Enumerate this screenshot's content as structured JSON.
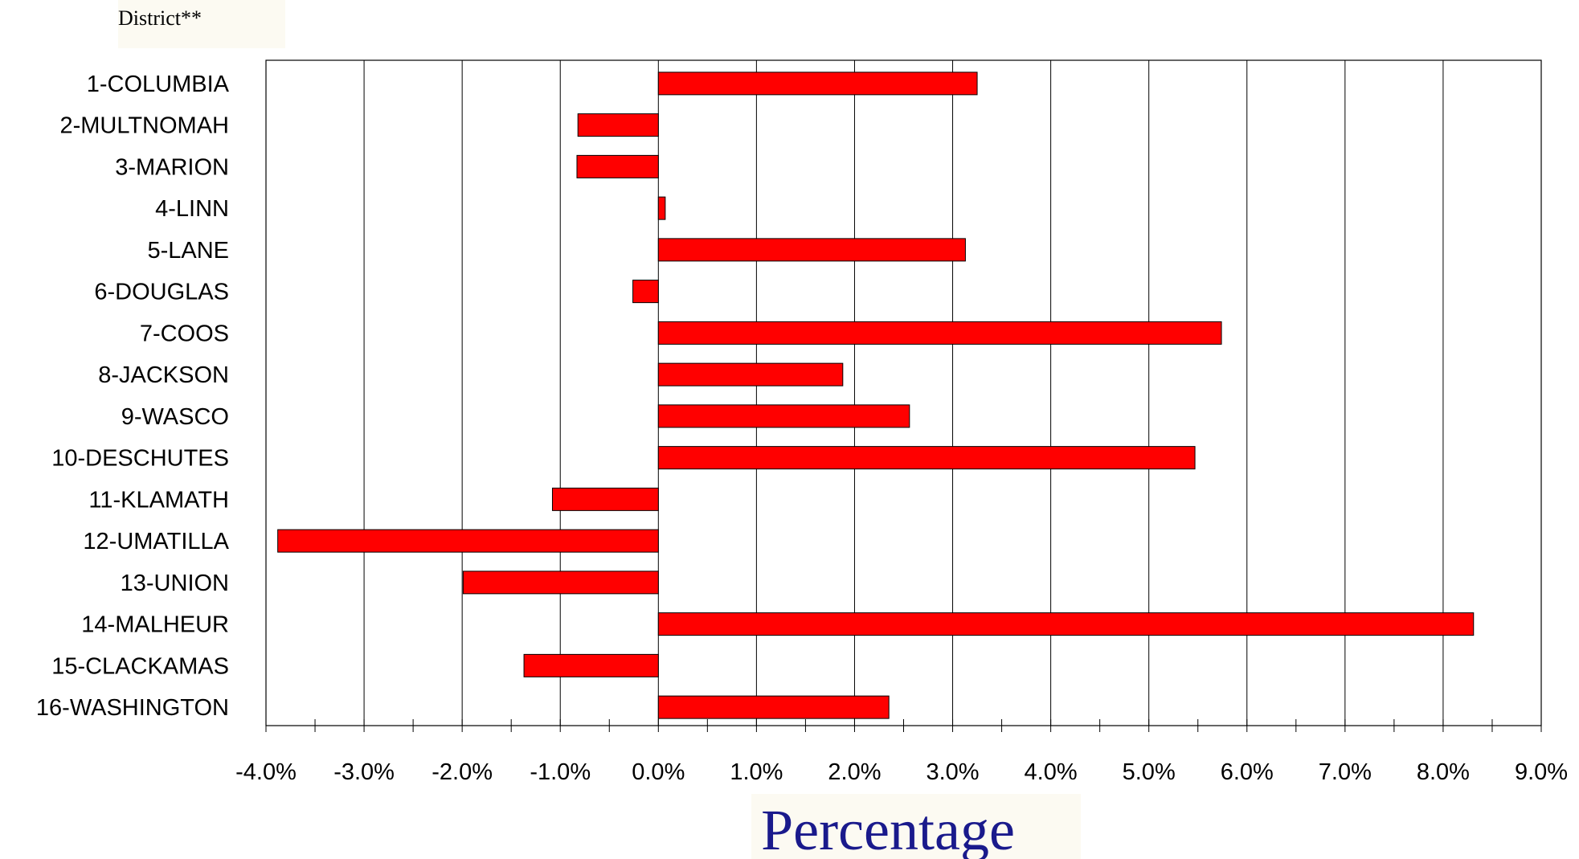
{
  "chart_data": {
    "type": "bar",
    "orientation": "horizontal",
    "ylabel": "District**",
    "xlabel": "Percentage",
    "categories": [
      "1-COLUMBIA",
      "2-MULTNOMAH",
      "3-MARION",
      "4-LINN",
      "5-LANE",
      "6-DOUGLAS",
      "7-COOS",
      "8-JACKSON",
      "9-WASCO",
      "10-DESCHUTES",
      "11-KLAMATH",
      "12-UMATILLA",
      "13-UNION",
      "14-MALHEUR",
      "15-CLACKAMAS",
      "16-WASHINGTON"
    ],
    "values": [
      3.25,
      -0.82,
      -0.83,
      0.07,
      3.13,
      -0.26,
      5.74,
      1.88,
      2.56,
      5.47,
      -1.08,
      -3.88,
      -1.99,
      8.31,
      -1.37,
      2.35
    ],
    "xlim": [
      -4.0,
      9.0
    ],
    "xticks": [
      -4,
      -3,
      -2,
      -1,
      0,
      1,
      2,
      3,
      4,
      5,
      6,
      7,
      8,
      9
    ],
    "xtick_labels": [
      "-4.0%",
      "-3.0%",
      "-2.0%",
      "-1.0%",
      "0.0%",
      "1.0%",
      "2.0%",
      "3.0%",
      "4.0%",
      "5.0%",
      "6.0%",
      "7.0%",
      "8.0%",
      "9.0%"
    ],
    "grid": "vertical",
    "bar_color": "#ff0000",
    "label_background": "#fcfaf2",
    "xlabel_color": "#1a1a8c"
  }
}
